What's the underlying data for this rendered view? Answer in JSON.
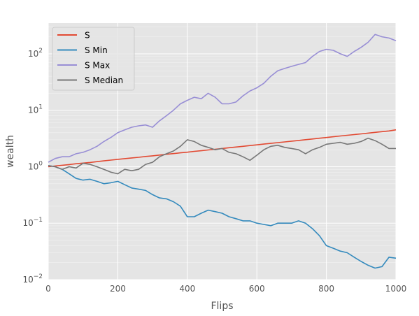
{
  "chart_data": {
    "type": "line",
    "title": "",
    "xlabel": "Flips",
    "ylabel": "wealth",
    "xlim": [
      0,
      1000
    ],
    "ylim": [
      0.01,
      350
    ],
    "yscale": "log",
    "grid": true,
    "legend_position": "top-left",
    "x_ticks": [
      {
        "value": 0,
        "label": "0"
      },
      {
        "value": 200,
        "label": "200"
      },
      {
        "value": 400,
        "label": "400"
      },
      {
        "value": 600,
        "label": "600"
      },
      {
        "value": 800,
        "label": "800"
      },
      {
        "value": 1000,
        "label": "1000"
      }
    ],
    "y_ticks": [
      {
        "value": 0.01,
        "base": "10",
        "exp": "−2"
      },
      {
        "value": 0.1,
        "base": "10",
        "exp": "−1"
      },
      {
        "value": 1,
        "base": "10",
        "exp": "0"
      },
      {
        "value": 10,
        "base": "10",
        "exp": "1"
      },
      {
        "value": 100,
        "base": "10",
        "exp": "2"
      }
    ],
    "x": [
      0,
      20,
      40,
      60,
      80,
      100,
      120,
      140,
      160,
      180,
      200,
      220,
      240,
      260,
      280,
      300,
      320,
      340,
      360,
      380,
      400,
      420,
      440,
      460,
      480,
      500,
      520,
      540,
      560,
      580,
      600,
      620,
      640,
      660,
      680,
      700,
      720,
      740,
      760,
      780,
      800,
      820,
      840,
      860,
      880,
      900,
      920,
      940,
      960,
      980,
      1000
    ],
    "series": [
      {
        "name": "S",
        "color": "#E24A33",
        "values": [
          1.0,
          1.03,
          1.06,
          1.09,
          1.13,
          1.16,
          1.19,
          1.23,
          1.27,
          1.31,
          1.35,
          1.39,
          1.43,
          1.47,
          1.52,
          1.56,
          1.61,
          1.66,
          1.71,
          1.76,
          1.81,
          1.87,
          1.92,
          1.98,
          2.04,
          2.1,
          2.17,
          2.23,
          2.3,
          2.37,
          2.44,
          2.52,
          2.59,
          2.67,
          2.75,
          2.84,
          2.92,
          3.01,
          3.1,
          3.2,
          3.29,
          3.39,
          3.5,
          3.6,
          3.71,
          3.82,
          3.94,
          4.06,
          4.18,
          4.3,
          4.5
        ]
      },
      {
        "name": "S Min",
        "color": "#348ABD",
        "values": [
          1.05,
          1.0,
          0.9,
          0.75,
          0.62,
          0.58,
          0.6,
          0.55,
          0.5,
          0.52,
          0.55,
          0.48,
          0.42,
          0.4,
          0.38,
          0.32,
          0.28,
          0.27,
          0.24,
          0.2,
          0.13,
          0.13,
          0.15,
          0.17,
          0.16,
          0.15,
          0.13,
          0.12,
          0.11,
          0.11,
          0.1,
          0.095,
          0.09,
          0.1,
          0.1,
          0.1,
          0.11,
          0.1,
          0.08,
          0.06,
          0.04,
          0.036,
          0.032,
          0.03,
          0.025,
          0.021,
          0.018,
          0.016,
          0.017,
          0.025,
          0.024
        ]
      },
      {
        "name": "S Max",
        "color": "#988ED5",
        "values": [
          1.2,
          1.4,
          1.5,
          1.5,
          1.7,
          1.8,
          2.0,
          2.3,
          2.8,
          3.3,
          4.0,
          4.5,
          5.0,
          5.3,
          5.5,
          5.0,
          6.5,
          8.0,
          10.0,
          13.0,
          15.0,
          17.0,
          16.0,
          20.0,
          17.0,
          13.0,
          13.0,
          14.0,
          18.0,
          22.0,
          25.0,
          30.0,
          40.0,
          50.0,
          55.0,
          60.0,
          65.0,
          70.0,
          90.0,
          110.0,
          120.0,
          115.0,
          100.0,
          90.0,
          110.0,
          130.0,
          160.0,
          220.0,
          200.0,
          190.0,
          170.0
        ]
      },
      {
        "name": "S Median",
        "color": "#777777",
        "values": [
          1.05,
          1.0,
          0.9,
          1.0,
          0.95,
          1.15,
          1.1,
          1.0,
          0.9,
          0.8,
          0.75,
          0.9,
          0.85,
          0.9,
          1.1,
          1.2,
          1.5,
          1.7,
          1.9,
          2.3,
          3.0,
          2.8,
          2.4,
          2.2,
          2.0,
          2.1,
          1.8,
          1.7,
          1.5,
          1.3,
          1.6,
          2.0,
          2.3,
          2.4,
          2.2,
          2.1,
          2.0,
          1.7,
          2.0,
          2.2,
          2.5,
          2.6,
          2.7,
          2.5,
          2.6,
          2.8,
          3.2,
          2.9,
          2.5,
          2.1,
          2.1
        ]
      }
    ]
  }
}
